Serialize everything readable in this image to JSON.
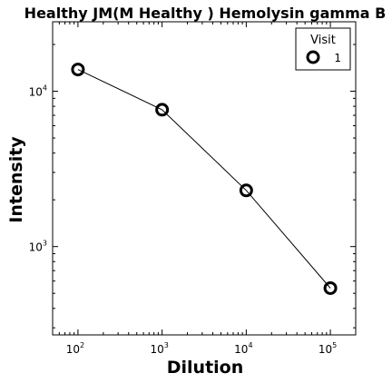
{
  "chart_data": {
    "type": "line",
    "title": "Healthy JM(M Healthy ) Hemolysin gamma B",
    "xlabel": "Dilution",
    "ylabel": "Intensity",
    "xscale": "log",
    "yscale": "log",
    "xlim": [
      50,
      200000
    ],
    "ylim": [
      270,
      28000
    ],
    "x_ticks": [
      {
        "base": "10",
        "exp": "2",
        "value": 100
      },
      {
        "base": "10",
        "exp": "3",
        "value": 1000
      },
      {
        "base": "10",
        "exp": "4",
        "value": 10000
      },
      {
        "base": "10",
        "exp": "5",
        "value": 100000
      }
    ],
    "y_ticks": [
      {
        "base": "10",
        "exp": "3",
        "value": 1000
      },
      {
        "base": "10",
        "exp": "4",
        "value": 10000
      }
    ],
    "legend": {
      "title": "Visit",
      "position": "top-right"
    },
    "grid": false,
    "series": [
      {
        "name": "1",
        "marker": "open-circle",
        "color": "#000000",
        "x": [
          100,
          1000,
          10000,
          100000
        ],
        "y": [
          13800,
          7600,
          2300,
          540
        ]
      }
    ]
  }
}
